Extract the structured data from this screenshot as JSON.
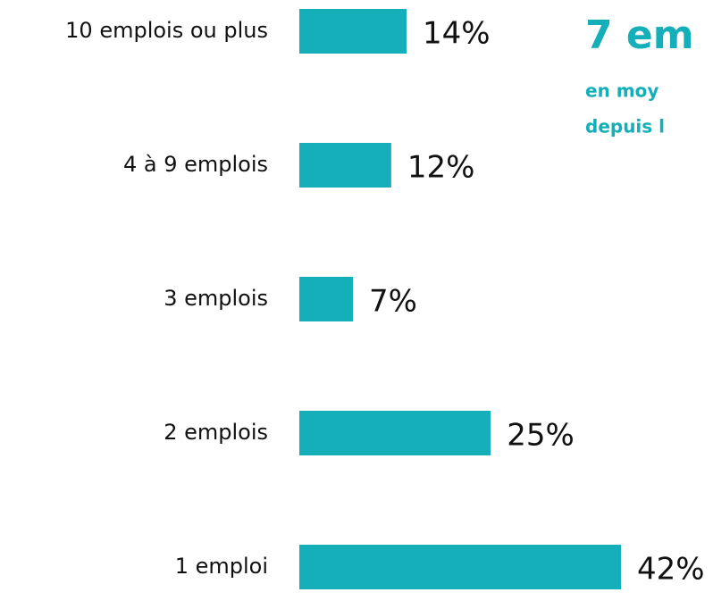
{
  "chart_data": {
    "type": "barh",
    "categories": [
      "10 emplois ou plus",
      "4 à 9 emplois",
      "3 emplois",
      "2 emplois",
      "1 emploi"
    ],
    "values": [
      14,
      12,
      7,
      25,
      42
    ],
    "value_labels": [
      "14%",
      "12%",
      "7%",
      "25%",
      "42%"
    ],
    "color": "#14afb8",
    "annotations": [
      "7 em",
      "en moy",
      "depuis l"
    ]
  }
}
